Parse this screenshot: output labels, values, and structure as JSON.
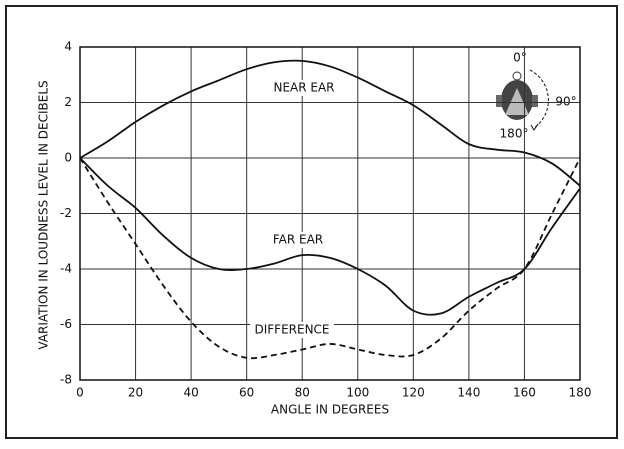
{
  "chart_data": {
    "type": "line",
    "x_label": "ANGLE IN DEGREES",
    "y_label": "VARIATION IN LOUDNESS LEVEL IN DECIBELS",
    "x": [
      0,
      10,
      20,
      30,
      40,
      50,
      60,
      70,
      80,
      90,
      100,
      110,
      120,
      130,
      140,
      150,
      160,
      170,
      180
    ],
    "series": [
      {
        "name": "NEAR EAR",
        "color": "#111111",
        "dash": false,
        "values": [
          0,
          0.6,
          1.3,
          1.9,
          2.4,
          2.8,
          3.2,
          3.45,
          3.5,
          3.3,
          2.9,
          2.4,
          1.9,
          1.2,
          0.5,
          0.3,
          0.2,
          -0.2,
          -1.0
        ]
      },
      {
        "name": "FAR EAR",
        "color": "#111111",
        "dash": false,
        "values": [
          0,
          -1.0,
          -1.8,
          -2.8,
          -3.6,
          -4.0,
          -4.0,
          -3.8,
          -3.5,
          -3.6,
          -4.0,
          -4.6,
          -5.5,
          -5.6,
          -5.0,
          -4.5,
          -4.0,
          -2.5,
          -1.1
        ]
      },
      {
        "name": "DIFFERENCE",
        "color": "#111111",
        "dash": true,
        "values": [
          0,
          -1.6,
          -3.1,
          -4.6,
          -5.9,
          -6.8,
          -7.2,
          -7.1,
          -6.9,
          -6.7,
          -6.9,
          -7.1,
          -7.1,
          -6.5,
          -5.5,
          -4.7,
          -4.0,
          -2.0,
          0
        ]
      }
    ],
    "xlim": [
      0,
      180
    ],
    "xticks": [
      0,
      20,
      40,
      60,
      80,
      100,
      120,
      140,
      160,
      180
    ],
    "ylim": [
      -8,
      4
    ],
    "yticks": [
      -8,
      -6,
      -4,
      -2,
      0,
      2,
      4
    ],
    "grid": true,
    "inset_labels": [
      "0°",
      "90°",
      "180°"
    ]
  }
}
